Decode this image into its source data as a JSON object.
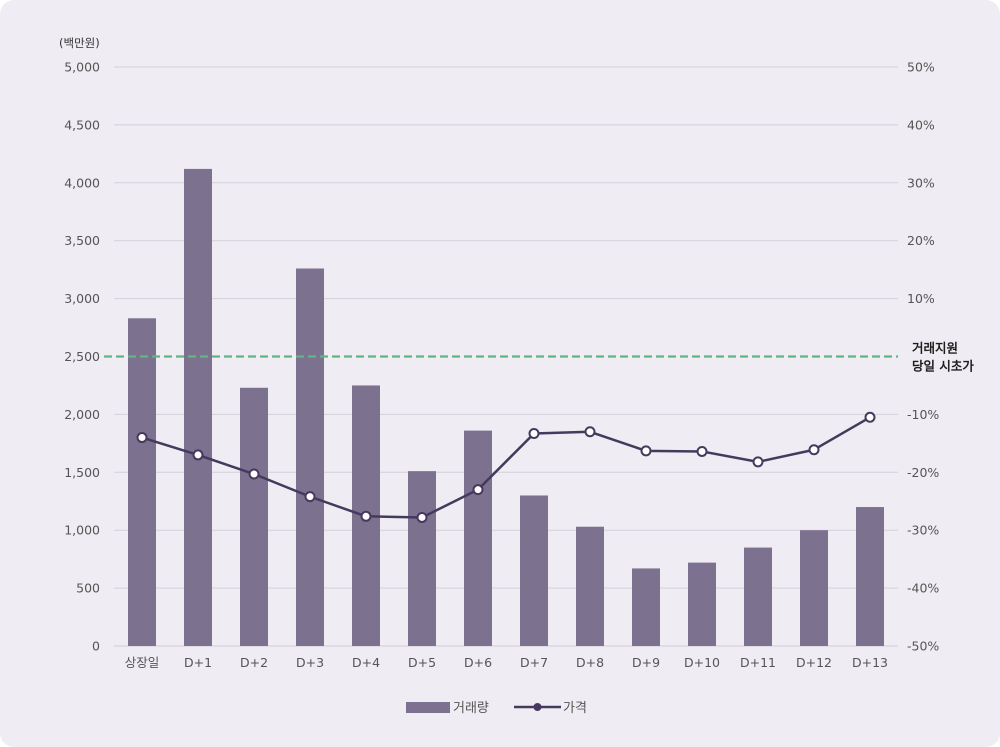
{
  "chart_data": {
    "type": "bar",
    "categories": [
      "상장일",
      "D+1",
      "D+2",
      "D+3",
      "D+4",
      "D+5",
      "D+6",
      "D+7",
      "D+8",
      "D+9",
      "D+10",
      "D+11",
      "D+12",
      "D+13"
    ],
    "series": [
      {
        "name": "거래량",
        "type": "bar",
        "axis": "left",
        "color": "#7d7190",
        "values": [
          2830,
          4120,
          2230,
          3260,
          2250,
          1510,
          1860,
          1300,
          1030,
          670,
          720,
          850,
          1000,
          1200
        ]
      },
      {
        "name": "가격",
        "type": "line",
        "axis": "right",
        "color": "#453a5e",
        "values": [
          -14,
          -17,
          -20.3,
          -24.2,
          -27.6,
          -27.8,
          -23,
          -13.3,
          -13,
          -16.3,
          -16.4,
          -18.2,
          -16.1,
          -10.5
        ]
      }
    ],
    "y_left": {
      "unit_label": "(백만원)",
      "ylim": [
        0,
        5000
      ],
      "ticks": [
        0,
        500,
        1000,
        1500,
        2000,
        2500,
        3000,
        3500,
        4000,
        4500,
        5000
      ],
      "tick_labels": [
        "0",
        "500",
        "1,000",
        "1,500",
        "2,000",
        "2,500",
        "3,000",
        "3,500",
        "4,000",
        "4,500",
        "5,000"
      ]
    },
    "y_right": {
      "ylim": [
        -50,
        50
      ],
      "ticks": [
        -50,
        -40,
        -30,
        -20,
        -10,
        10,
        20,
        30,
        40,
        50
      ],
      "tick_labels": [
        "-50%",
        "-40%",
        "-30%",
        "-20%",
        "-10%",
        "10%",
        "20%",
        "30%",
        "40%",
        "50%"
      ]
    },
    "reference_line": {
      "axis": "right",
      "value": 0,
      "color": "#5cb883",
      "style": "dashed",
      "label_lines": [
        "거래지원",
        "당일 시초가"
      ]
    },
    "grid": true,
    "legend": {
      "placement": "bottom",
      "entries": [
        "거래량",
        "가격"
      ]
    }
  }
}
